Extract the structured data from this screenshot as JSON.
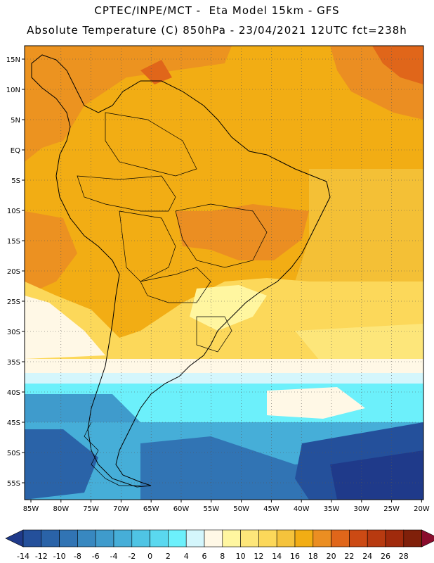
{
  "header": {
    "line1": "CPTEC/INPE/MCT -  Eta Model 15km - GFS",
    "line2": "Absolute Temperature (C) 850hPa - 23/04/2021 12UTC fct=238h"
  },
  "axes": {
    "lat_labels": [
      "15N",
      "10N",
      "5N",
      "EQ",
      "5S",
      "10S",
      "15S",
      "20S",
      "25S",
      "30S",
      "35S",
      "40S",
      "45S",
      "50S",
      "55S"
    ],
    "lon_labels": [
      "85W",
      "80W",
      "75W",
      "70W",
      "65W",
      "60W",
      "55W",
      "50W",
      "45W",
      "40W",
      "35W",
      "30W",
      "25W",
      "20W"
    ]
  },
  "colorbar": {
    "labels": [
      "-14",
      "-12",
      "-10",
      "-8",
      "-6",
      "-4",
      "-2",
      "0",
      "2",
      "4",
      "6",
      "8",
      "10",
      "12",
      "14",
      "16",
      "18",
      "20",
      "22",
      "24",
      "26",
      "28"
    ],
    "colors": [
      "#1f3a8a",
      "#24509b",
      "#2a63a8",
      "#3174b4",
      "#3888c0",
      "#3f9bcc",
      "#46aed8",
      "#4fc4e4",
      "#5ad8ef",
      "#6cf0fb",
      "#d4f6fc",
      "#fff8e6",
      "#fff6a0",
      "#fde67a",
      "#fcd85a",
      "#f5c33c",
      "#f2ad14",
      "#eb8e22",
      "#e0661a",
      "#cc4a14",
      "#b83a10",
      "#a02a0c",
      "#80200a",
      "#8a0c2c"
    ]
  },
  "palette": {
    "ocean_warm": "#f2ad14",
    "land_warm": "#eb8e22",
    "cold": "#1f3a8a",
    "cool": "#6cf0fb"
  }
}
